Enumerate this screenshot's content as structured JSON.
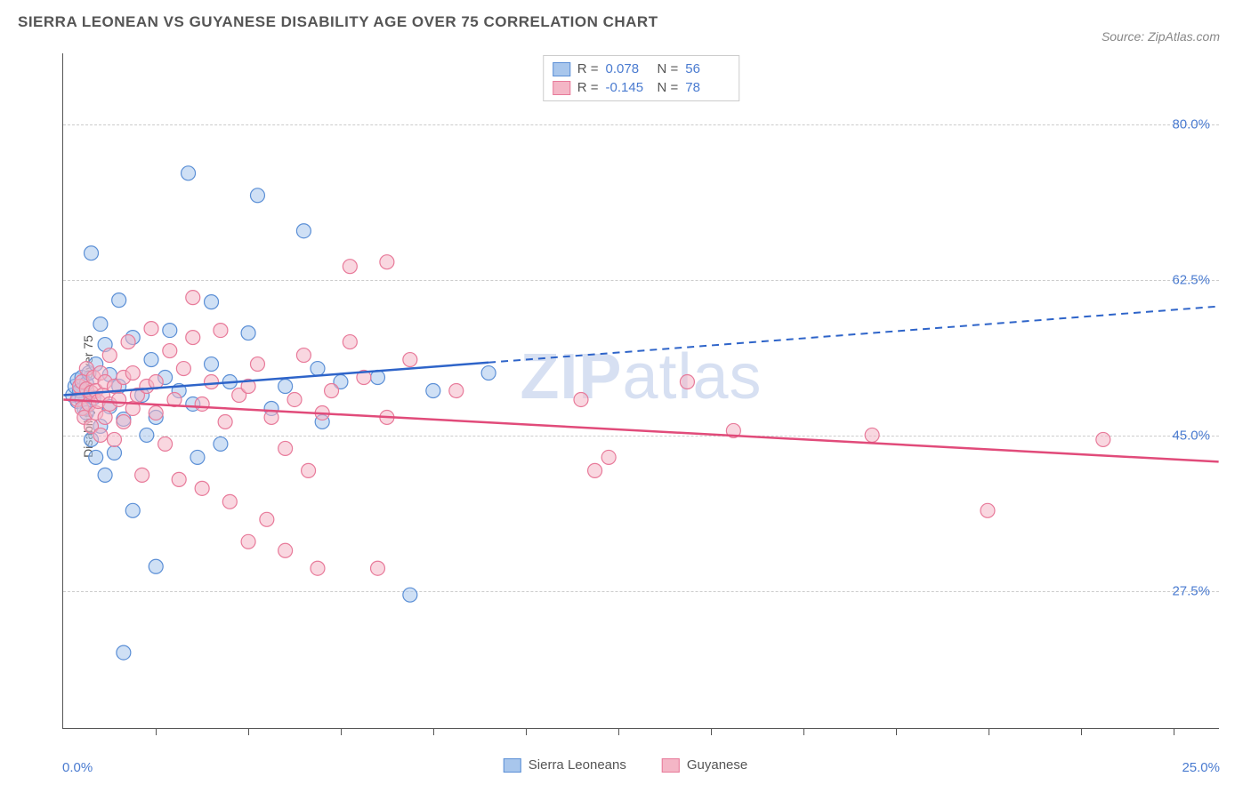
{
  "title": "SIERRA LEONEAN VS GUYANESE DISABILITY AGE OVER 75 CORRELATION CHART",
  "source": "Source: ZipAtlas.com",
  "watermark_bold": "ZIP",
  "watermark_light": "atlas",
  "yaxis_title": "Disability Age Over 75",
  "chart": {
    "type": "scatter-with-regression",
    "background_color": "#ffffff",
    "grid_color": "#cccccc",
    "axis_color": "#555555",
    "text_color": "#555555",
    "value_color": "#4a7bd0",
    "xlim": [
      0,
      25
    ],
    "ylim": [
      12,
      88
    ],
    "ytick_values": [
      27.5,
      45.0,
      62.5,
      80.0
    ],
    "ytick_labels": [
      "27.5%",
      "45.0%",
      "62.5%",
      "80.0%"
    ],
    "xtick_values": [
      2,
      4,
      6,
      8,
      10,
      12,
      14,
      16,
      18,
      20,
      22,
      24
    ],
    "xaxis_left_label": "0.0%",
    "xaxis_right_label": "25.0%",
    "marker_radius": 8,
    "marker_opacity": 0.55,
    "marker_stroke_width": 1.2,
    "series": [
      {
        "name": "Sierra Leoneans",
        "fill_color": "#a8c6ec",
        "stroke_color": "#5b8fd6",
        "line_color": "#2e64c9",
        "r_value": "0.078",
        "n_value": "56",
        "regression": {
          "x1": 0,
          "y1": 49.5,
          "x2": 25,
          "y2": 59.5,
          "solid_until_x": 9.2
        },
        "points": [
          [
            0.2,
            49.5
          ],
          [
            0.25,
            50.5
          ],
          [
            0.3,
            48.8
          ],
          [
            0.3,
            51.2
          ],
          [
            0.35,
            50.0
          ],
          [
            0.4,
            49.0
          ],
          [
            0.4,
            51.5
          ],
          [
            0.45,
            48.0
          ],
          [
            0.5,
            50.8
          ],
          [
            0.5,
            47.5
          ],
          [
            0.55,
            52.0
          ],
          [
            0.6,
            65.5
          ],
          [
            0.6,
            44.5
          ],
          [
            0.65,
            49.2
          ],
          [
            0.7,
            53.0
          ],
          [
            0.7,
            42.5
          ],
          [
            0.8,
            46.0
          ],
          [
            0.8,
            57.5
          ],
          [
            0.9,
            40.5
          ],
          [
            0.9,
            55.2
          ],
          [
            1.0,
            51.8
          ],
          [
            1.0,
            48.2
          ],
          [
            1.1,
            43.0
          ],
          [
            1.2,
            60.2
          ],
          [
            1.2,
            50.5
          ],
          [
            1.3,
            46.8
          ],
          [
            1.3,
            20.5
          ],
          [
            1.5,
            56.0
          ],
          [
            1.5,
            36.5
          ],
          [
            1.7,
            49.5
          ],
          [
            1.8,
            45.0
          ],
          [
            1.9,
            53.5
          ],
          [
            2.0,
            47.0
          ],
          [
            2.0,
            30.2
          ],
          [
            2.2,
            51.5
          ],
          [
            2.3,
            56.8
          ],
          [
            2.5,
            50.0
          ],
          [
            2.7,
            74.5
          ],
          [
            2.8,
            48.5
          ],
          [
            2.9,
            42.5
          ],
          [
            3.2,
            53.0
          ],
          [
            3.2,
            60.0
          ],
          [
            3.4,
            44.0
          ],
          [
            3.6,
            51.0
          ],
          [
            4.0,
            56.5
          ],
          [
            4.2,
            72.0
          ],
          [
            4.5,
            48.0
          ],
          [
            4.8,
            50.5
          ],
          [
            5.2,
            68.0
          ],
          [
            5.5,
            52.5
          ],
          [
            5.6,
            46.5
          ],
          [
            6.0,
            51.0
          ],
          [
            6.8,
            51.5
          ],
          [
            7.5,
            27.0
          ],
          [
            8.0,
            50.0
          ],
          [
            9.2,
            52.0
          ]
        ]
      },
      {
        "name": "Guyanese",
        "fill_color": "#f4b6c6",
        "stroke_color": "#e87a9a",
        "line_color": "#e14b7a",
        "r_value": "-0.145",
        "n_value": "78",
        "regression": {
          "x1": 0,
          "y1": 49.0,
          "x2": 25,
          "y2": 42.0,
          "solid_until_x": 25
        },
        "points": [
          [
            0.3,
            49.0
          ],
          [
            0.35,
            50.5
          ],
          [
            0.4,
            48.0
          ],
          [
            0.4,
            51.0
          ],
          [
            0.45,
            47.0
          ],
          [
            0.5,
            50.2
          ],
          [
            0.5,
            52.5
          ],
          [
            0.55,
            48.5
          ],
          [
            0.6,
            49.8
          ],
          [
            0.6,
            46.0
          ],
          [
            0.65,
            51.5
          ],
          [
            0.7,
            47.5
          ],
          [
            0.7,
            50.0
          ],
          [
            0.75,
            48.8
          ],
          [
            0.8,
            52.0
          ],
          [
            0.8,
            45.0
          ],
          [
            0.85,
            49.5
          ],
          [
            0.9,
            51.0
          ],
          [
            0.9,
            47.0
          ],
          [
            1.0,
            48.5
          ],
          [
            1.0,
            54.0
          ],
          [
            1.1,
            50.5
          ],
          [
            1.1,
            44.5
          ],
          [
            1.2,
            49.0
          ],
          [
            1.3,
            51.5
          ],
          [
            1.3,
            46.5
          ],
          [
            1.4,
            55.5
          ],
          [
            1.5,
            48.0
          ],
          [
            1.5,
            52.0
          ],
          [
            1.6,
            49.5
          ],
          [
            1.7,
            40.5
          ],
          [
            1.8,
            50.5
          ],
          [
            1.9,
            57.0
          ],
          [
            2.0,
            47.5
          ],
          [
            2.0,
            51.0
          ],
          [
            2.2,
            44.0
          ],
          [
            2.3,
            54.5
          ],
          [
            2.4,
            49.0
          ],
          [
            2.5,
            40.0
          ],
          [
            2.6,
            52.5
          ],
          [
            2.8,
            56.0
          ],
          [
            2.8,
            60.5
          ],
          [
            3.0,
            48.5
          ],
          [
            3.0,
            39.0
          ],
          [
            3.2,
            51.0
          ],
          [
            3.4,
            56.8
          ],
          [
            3.5,
            46.5
          ],
          [
            3.6,
            37.5
          ],
          [
            3.8,
            49.5
          ],
          [
            4.0,
            50.5
          ],
          [
            4.0,
            33.0
          ],
          [
            4.2,
            53.0
          ],
          [
            4.4,
            35.5
          ],
          [
            4.5,
            47.0
          ],
          [
            4.8,
            43.5
          ],
          [
            4.8,
            32.0
          ],
          [
            5.0,
            49.0
          ],
          [
            5.2,
            54.0
          ],
          [
            5.3,
            41.0
          ],
          [
            5.5,
            30.0
          ],
          [
            5.6,
            47.5
          ],
          [
            5.8,
            50.0
          ],
          [
            6.2,
            55.5
          ],
          [
            6.2,
            64.0
          ],
          [
            6.5,
            51.5
          ],
          [
            6.8,
            30.0
          ],
          [
            7.0,
            64.5
          ],
          [
            7.0,
            47.0
          ],
          [
            7.5,
            53.5
          ],
          [
            8.5,
            50.0
          ],
          [
            11.5,
            41.0
          ],
          [
            11.8,
            42.5
          ],
          [
            13.5,
            51.0
          ],
          [
            14.5,
            45.5
          ],
          [
            17.5,
            45.0
          ],
          [
            20.0,
            36.5
          ],
          [
            22.5,
            44.5
          ],
          [
            11.2,
            49.0
          ]
        ]
      }
    ]
  },
  "legend_r_label": "R =",
  "legend_n_label": "N ="
}
